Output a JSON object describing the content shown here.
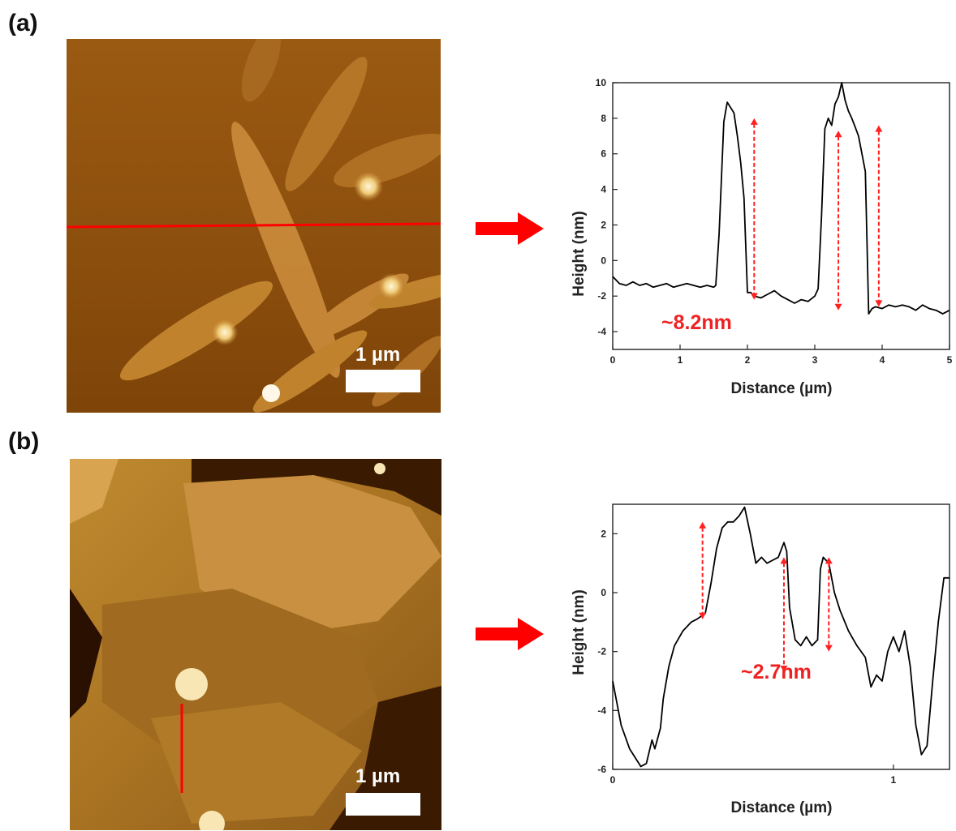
{
  "panels": [
    {
      "label": "(a)",
      "scale_bar": "1 µm"
    },
    {
      "label": "(b)",
      "scale_bar": "1 µm"
    }
  ],
  "colors": {
    "accent": "#ff0000",
    "afm_dark": "#5a3000",
    "afm_light": "#f5d58a",
    "line": "#000000"
  },
  "chart_data": [
    {
      "type": "line",
      "xlabel": "Distance (µm)",
      "ylabel": "Height (nm)",
      "xlim": [
        0,
        5
      ],
      "ylim": [
        -5,
        10
      ],
      "xticks": [
        0,
        1,
        2,
        3,
        4,
        5
      ],
      "yticks": [
        -4,
        -2,
        0,
        2,
        4,
        6,
        8,
        10
      ],
      "annotation": "~8.2nm",
      "arrows": [
        {
          "x": 2.1,
          "y1": -2.2,
          "y2": 8.0
        },
        {
          "x": 3.35,
          "y1": -2.8,
          "y2": 7.3
        },
        {
          "x": 3.95,
          "y1": -2.6,
          "y2": 7.6
        }
      ],
      "series": [
        {
          "x": [
            0,
            0.1,
            0.2,
            0.3,
            0.4,
            0.5,
            0.6,
            0.7,
            0.8,
            0.9,
            1.0,
            1.1,
            1.2,
            1.3,
            1.4,
            1.5,
            1.53,
            1.58,
            1.65,
            1.7,
            1.75,
            1.8,
            1.85,
            1.9,
            1.95,
            2.0,
            2.05,
            2.1,
            2.2,
            2.3,
            2.4,
            2.5,
            2.6,
            2.7,
            2.8,
            2.9,
            3.0,
            3.05,
            3.1,
            3.15,
            3.2,
            3.25,
            3.3,
            3.35,
            3.4,
            3.45,
            3.5,
            3.55,
            3.6,
            3.65,
            3.7,
            3.75,
            3.8,
            3.85,
            3.9,
            4.0,
            4.1,
            4.2,
            4.3,
            4.4,
            4.5,
            4.6,
            4.7,
            4.8,
            4.9,
            5.0
          ],
          "y": [
            -0.9,
            -1.3,
            -1.4,
            -1.2,
            -1.4,
            -1.3,
            -1.5,
            -1.4,
            -1.3,
            -1.5,
            -1.4,
            -1.3,
            -1.4,
            -1.5,
            -1.4,
            -1.5,
            -1.4,
            1.5,
            7.8,
            8.9,
            8.6,
            8.3,
            7.0,
            5.5,
            3.5,
            -1.8,
            -1.8,
            -2.0,
            -2.1,
            -1.9,
            -1.7,
            -2.0,
            -2.2,
            -2.4,
            -2.2,
            -2.3,
            -2.0,
            -1.6,
            2.5,
            7.4,
            8.0,
            7.6,
            8.8,
            9.2,
            10.0,
            9.0,
            8.4,
            8.0,
            7.5,
            7.0,
            6.0,
            5.0,
            -3.0,
            -2.7,
            -2.6,
            -2.7,
            -2.5,
            -2.6,
            -2.5,
            -2.6,
            -2.8,
            -2.5,
            -2.7,
            -2.8,
            -3.0,
            -2.8
          ]
        }
      ]
    },
    {
      "type": "line",
      "xlabel": "Distance (µm)",
      "ylabel": "Height (nm)",
      "xlim": [
        0,
        1.2
      ],
      "ylim": [
        -6,
        3
      ],
      "xticks": [
        0,
        1
      ],
      "yticks": [
        -6,
        -4,
        -2,
        0,
        2
      ],
      "annotation": "~2.7nm",
      "arrows": [
        {
          "x": 0.32,
          "y1": 2.4,
          "y2": -0.9
        },
        {
          "x": 0.61,
          "y1": 1.2,
          "y2": -2.7
        },
        {
          "x": 0.77,
          "y1": 1.2,
          "y2": -2.0
        }
      ],
      "series": [
        {
          "x": [
            0,
            0.03,
            0.06,
            0.1,
            0.12,
            0.14,
            0.15,
            0.17,
            0.18,
            0.2,
            0.22,
            0.25,
            0.28,
            0.3,
            0.33,
            0.35,
            0.37,
            0.39,
            0.41,
            0.43,
            0.45,
            0.47,
            0.49,
            0.51,
            0.53,
            0.55,
            0.57,
            0.59,
            0.61,
            0.62,
            0.63,
            0.65,
            0.67,
            0.69,
            0.71,
            0.73,
            0.74,
            0.75,
            0.77,
            0.79,
            0.81,
            0.84,
            0.87,
            0.9,
            0.92,
            0.94,
            0.96,
            0.98,
            1.0,
            1.02,
            1.04,
            1.06,
            1.08,
            1.1,
            1.12,
            1.14,
            1.16,
            1.18,
            1.2
          ],
          "y": [
            -3.0,
            -4.5,
            -5.3,
            -5.9,
            -5.8,
            -5.0,
            -5.3,
            -4.6,
            -3.6,
            -2.5,
            -1.8,
            -1.3,
            -1.0,
            -0.9,
            -0.7,
            0.3,
            1.5,
            2.2,
            2.4,
            2.4,
            2.6,
            2.9,
            2.0,
            1.0,
            1.2,
            1.0,
            1.1,
            1.2,
            1.7,
            1.4,
            -0.5,
            -1.6,
            -1.8,
            -1.5,
            -1.8,
            -1.6,
            0.8,
            1.2,
            1.0,
            0.0,
            -0.6,
            -1.3,
            -1.8,
            -2.2,
            -3.2,
            -2.8,
            -3.0,
            -2.0,
            -1.5,
            -2.0,
            -1.3,
            -2.5,
            -4.5,
            -5.5,
            -5.2,
            -3.0,
            -1.0,
            0.5,
            0.5
          ]
        }
      ]
    }
  ]
}
